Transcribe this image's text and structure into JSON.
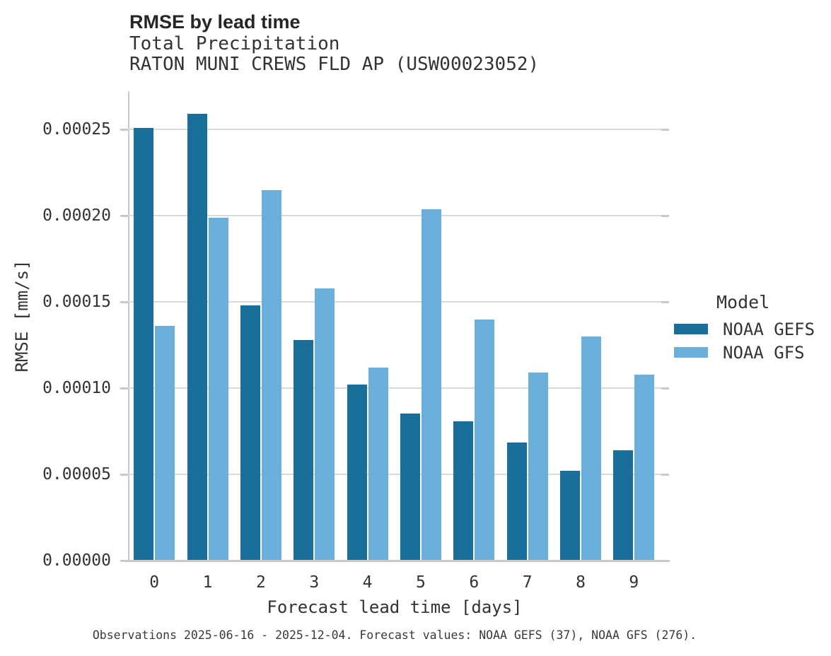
{
  "chart_data": {
    "type": "bar",
    "title": "RMSE by lead time",
    "subtitle": "Total Precipitation",
    "station_line": "RATON MUNI CREWS FLD AP (USW00023052)",
    "xlabel": "Forecast lead time [days]",
    "ylabel": "RMSE [mm/s]",
    "categories": [
      "0",
      "1",
      "2",
      "3",
      "4",
      "5",
      "6",
      "7",
      "8",
      "9"
    ],
    "series": [
      {
        "name": "NOAA GEFS",
        "color": "#1A6E9C",
        "values": [
          0.000251,
          0.000259,
          0.000148,
          0.000128,
          0.000102,
          8.54e-05,
          8.07e-05,
          6.87e-05,
          5.21e-05,
          6.39e-05
        ]
      },
      {
        "name": "NOAA GFS",
        "color": "#69AFD9",
        "values": [
          0.000136,
          0.000199,
          0.000215,
          0.000158,
          0.000112,
          0.000204,
          0.00014,
          0.000109,
          0.00013,
          0.000108
        ]
      }
    ],
    "yticks": [
      0.0,
      5e-05,
      0.0001,
      0.00015,
      0.0002,
      0.00025
    ],
    "ytick_labels": [
      "0.00000",
      "0.00005",
      "0.00010",
      "0.00015",
      "0.00020",
      "0.00025"
    ],
    "ylim": [
      0,
      0.0002723
    ],
    "grid": "horizontal",
    "legend": {
      "title": "Model",
      "position": "right-center"
    },
    "caption": "Observations 2025-06-16 - 2025-12-04. Forecast values: NOAA GEFS (37), NOAA GFS (276)."
  },
  "colors": {
    "bar_dark": "#1A6E9C",
    "bar_light": "#69AFD9",
    "gridline": "#D9D9D9",
    "axis": "#C9C9C9",
    "text": "#333333",
    "title_text": "#262626",
    "caption_text": "#3A3A3A",
    "background": "#FFFFFF"
  }
}
